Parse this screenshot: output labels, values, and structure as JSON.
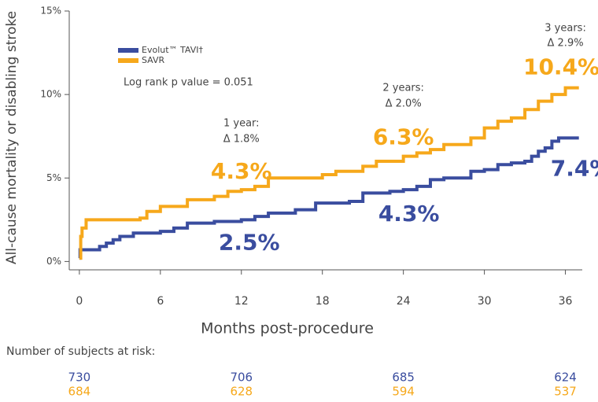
{
  "chart_data": {
    "type": "line",
    "step": "post",
    "y_label": "All-cause mortality or disabling stroke",
    "x_label": "Months post-procedure",
    "annotation": "Log rank p value = 0.051",
    "xlim": [
      -0.75,
      37.25
    ],
    "xticks": [
      0,
      6,
      12,
      18,
      24,
      30,
      36
    ],
    "ylim": [
      -0.5,
      15
    ],
    "yticks": [
      {
        "value": 0,
        "label": "0%"
      },
      {
        "value": 5,
        "label": "5%"
      },
      {
        "value": 10,
        "label": "10%"
      },
      {
        "value": 15,
        "label": "15%"
      }
    ],
    "series": [
      {
        "name": "Evolut™ TAVI†",
        "color": "#3a4d9f",
        "x": [
          0,
          0.05,
          1.5,
          2,
          2.5,
          3,
          4,
          6,
          7,
          8,
          10,
          12,
          13,
          14,
          16,
          17.5,
          20,
          21,
          23,
          24,
          25,
          26,
          27,
          29,
          30,
          31,
          32,
          33,
          33.5,
          34,
          34.5,
          35,
          35.5,
          37
        ],
        "values": [
          0.2,
          0.7,
          0.9,
          1.1,
          1.3,
          1.5,
          1.7,
          1.8,
          2.0,
          2.3,
          2.4,
          2.5,
          2.7,
          2.9,
          3.1,
          3.5,
          3.6,
          4.1,
          4.2,
          4.3,
          4.5,
          4.9,
          5.0,
          5.4,
          5.5,
          5.8,
          5.9,
          6.0,
          6.3,
          6.6,
          6.8,
          7.2,
          7.4,
          7.4
        ],
        "point_labels": {
          "x": [
            12,
            24,
            36
          ],
          "values": [
            2.5,
            4.3,
            7.4
          ],
          "value_labels": [
            "2.5%",
            "4.3%",
            "7.4%"
          ]
        }
      },
      {
        "name": "SAVR",
        "color": "#f6a81b",
        "x": [
          0,
          0.1,
          0.2,
          0.5,
          4.5,
          5,
          6,
          8,
          10,
          11,
          12,
          13,
          14,
          18,
          19,
          21,
          22,
          24,
          25,
          26,
          27,
          29,
          30,
          31,
          32,
          33,
          34,
          35,
          36,
          37
        ],
        "values": [
          0.2,
          1.5,
          2.0,
          2.5,
          2.6,
          3.0,
          3.3,
          3.7,
          3.9,
          4.2,
          4.3,
          4.5,
          5.0,
          5.2,
          5.4,
          5.7,
          6.0,
          6.3,
          6.5,
          6.7,
          7.0,
          7.4,
          8.0,
          8.4,
          8.6,
          9.1,
          9.6,
          10.0,
          10.4,
          10.4
        ],
        "point_labels": {
          "x": [
            12,
            24,
            36
          ],
          "values": [
            4.3,
            6.3,
            10.4
          ],
          "value_labels": [
            "4.3%",
            "6.3%",
            "10.4%"
          ]
        }
      }
    ],
    "callouts": [
      {
        "x": 12,
        "header": "1 year:",
        "delta": "Δ 1.8%"
      },
      {
        "x": 24,
        "header": "2 years:",
        "delta": "Δ 2.0%"
      },
      {
        "x": 36,
        "header": "3 years:",
        "delta": "Δ 2.9%"
      }
    ],
    "at_risk": {
      "title": "Number of subjects at risk:",
      "x": [
        0,
        12,
        24,
        36
      ],
      "series": [
        {
          "values": [
            730,
            706,
            685,
            624
          ]
        },
        {
          "values": [
            684,
            628,
            594,
            537
          ]
        }
      ]
    }
  }
}
